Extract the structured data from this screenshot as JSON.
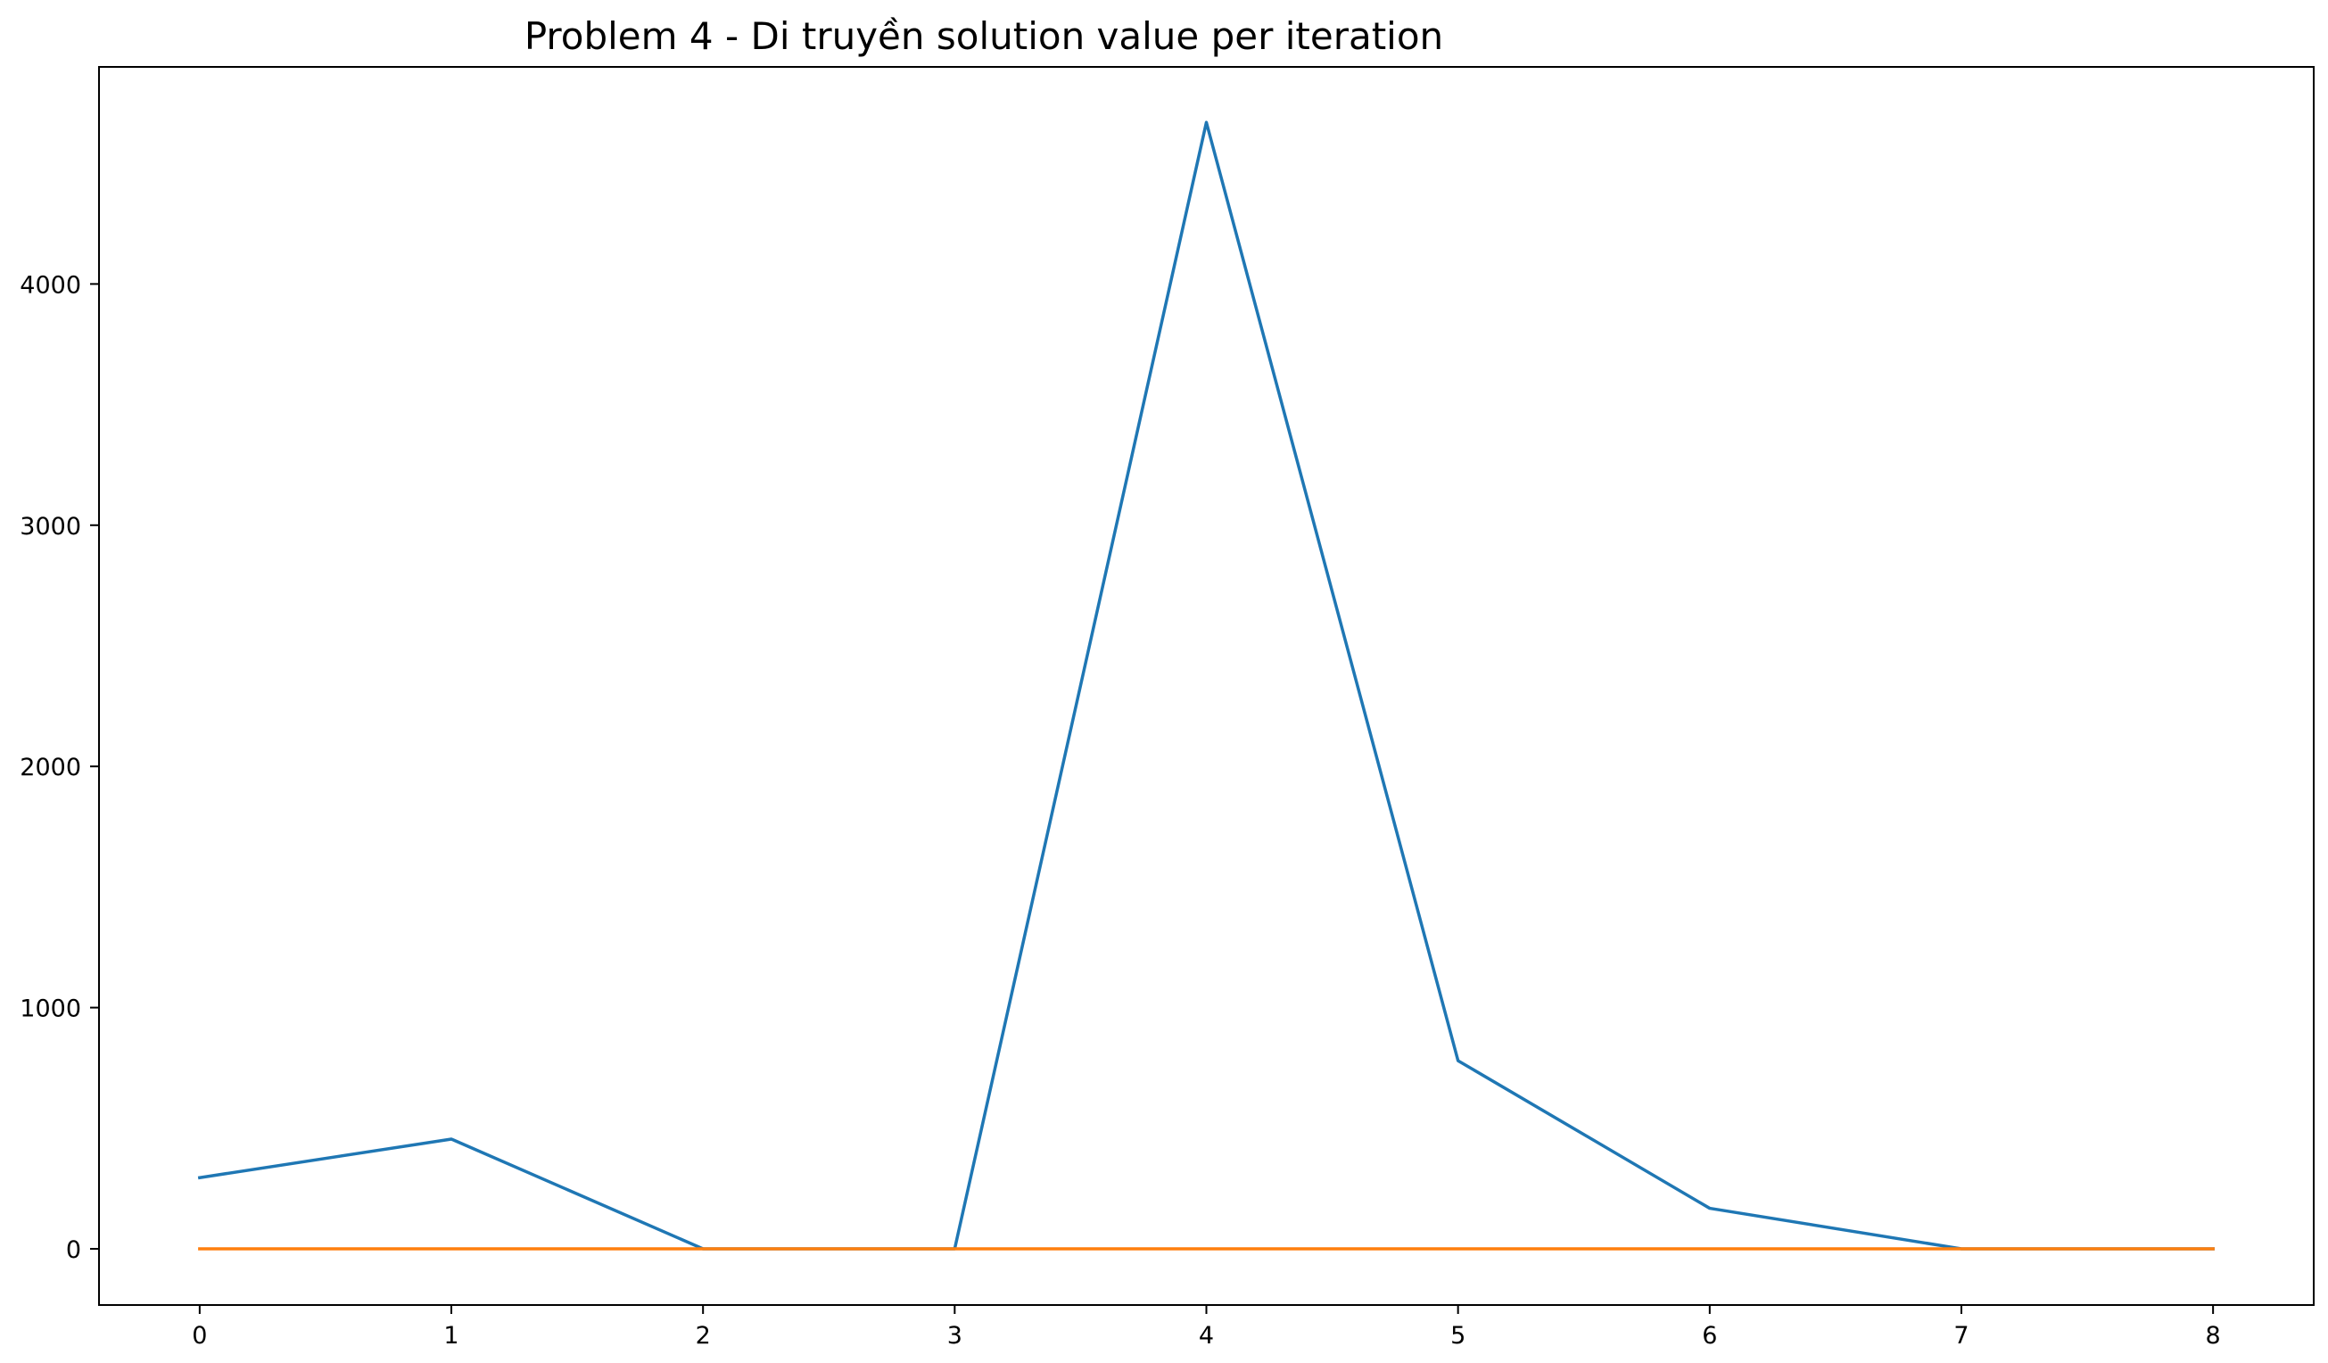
{
  "chart_data": {
    "type": "line",
    "title": "Problem 4 - Di truyền solution value per iteration",
    "xlabel": "",
    "ylabel": "",
    "x": [
      0,
      1,
      2,
      3,
      4,
      5,
      6,
      7,
      8
    ],
    "xlim": [
      -0.4,
      8.4
    ],
    "ylim": [
      -233,
      4900
    ],
    "x_ticks": [
      "0",
      "1",
      "2",
      "3",
      "4",
      "5",
      "6",
      "7",
      "8"
    ],
    "y_ticks": [
      "0",
      "1000",
      "2000",
      "3000",
      "4000"
    ],
    "y_tick_values": [
      0,
      1000,
      2000,
      3000,
      4000
    ],
    "grid": false,
    "legend": "none",
    "series": [
      {
        "color": "#1f77b4",
        "values": [
          295,
          455,
          0,
          0,
          4670,
          780,
          168,
          0,
          0
        ]
      },
      {
        "color": "#ff7f0e",
        "values": [
          0,
          0,
          0,
          0,
          0,
          0,
          0,
          0,
          0
        ]
      }
    ]
  }
}
